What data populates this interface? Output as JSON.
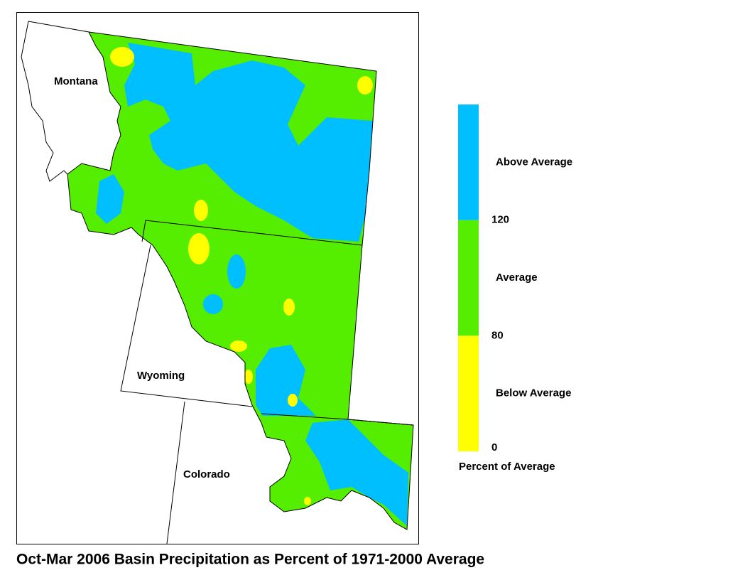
{
  "map": {
    "title": "Oct-Mar 2006 Basin Precipitation as Percent of 1971-2000 Average",
    "state_labels": [
      "Montana",
      "Wyoming",
      "Colorado"
    ]
  },
  "legend": {
    "title": "Percent of Average",
    "categories": [
      {
        "label": "Below Average",
        "color": "#ffff00"
      },
      {
        "label": "Average",
        "color": "#55ee00"
      },
      {
        "label": "Above Average",
        "color": "#00bfff"
      }
    ],
    "ticks": [
      0,
      80,
      120
    ]
  }
}
